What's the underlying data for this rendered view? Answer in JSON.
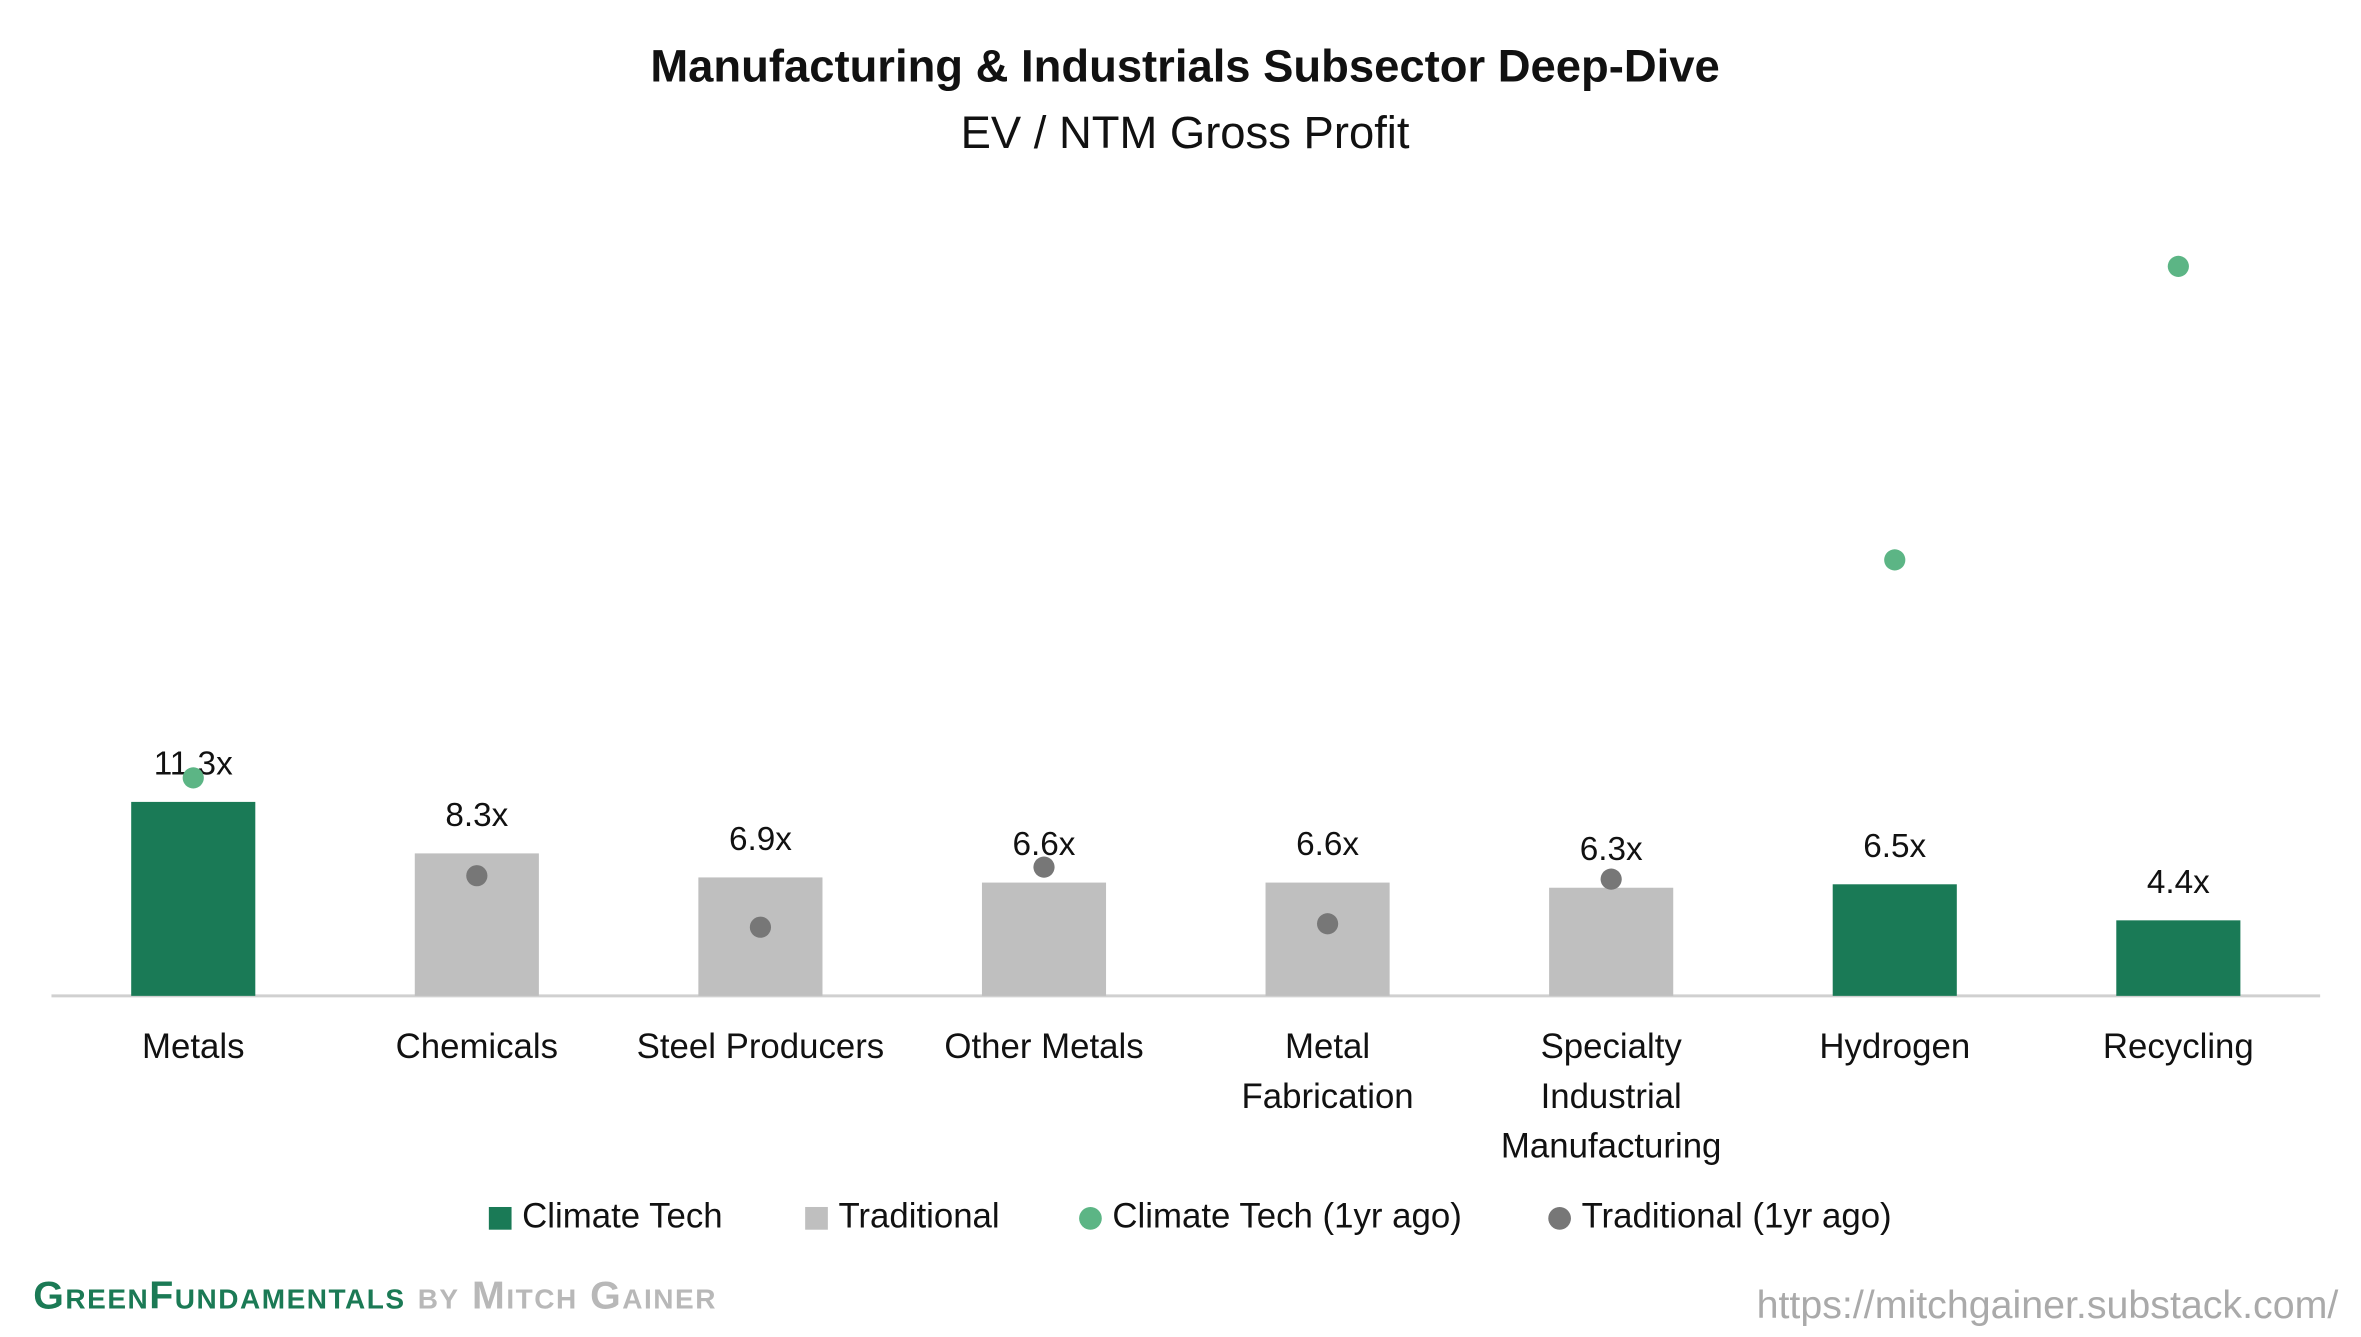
{
  "chart_data": {
    "type": "bar",
    "title": "Manufacturing & Industrials Subsector Deep-Dive",
    "subtitle": "EV / NTM Gross Profit",
    "categories": [
      "Metals",
      "Chemicals",
      "Steel Producers",
      "Other Metals",
      "Metal Fabrication",
      "Specialty Industrial Manufacturing",
      "Hydrogen",
      "Recycling"
    ],
    "series": [
      {
        "name": "Climate Tech",
        "type": "bar",
        "color": "#1a7a56",
        "values": [
          11.3,
          null,
          null,
          null,
          null,
          null,
          6.5,
          4.4
        ],
        "value_labels": [
          "11.3x",
          null,
          null,
          null,
          null,
          null,
          "6.5x",
          "4.4x"
        ]
      },
      {
        "name": "Traditional",
        "type": "bar",
        "color": "#bfbfbf",
        "values": [
          null,
          8.3,
          6.9,
          6.6,
          6.6,
          6.3,
          null,
          null
        ],
        "value_labels": [
          null,
          "8.3x",
          "6.9x",
          "6.6x",
          "6.6x",
          "6.3x",
          null,
          null
        ]
      },
      {
        "name": "Climate Tech (1yr ago)",
        "type": "scatter",
        "color": "#5cb585",
        "values": [
          12.7,
          null,
          null,
          null,
          null,
          null,
          25.4,
          42.5
        ]
      },
      {
        "name": "Traditional (1yr ago)",
        "type": "scatter",
        "color": "#777777",
        "values": [
          null,
          7.0,
          4.0,
          7.5,
          4.2,
          6.8,
          null,
          null
        ]
      }
    ],
    "legend": "bottom"
  },
  "footer": {
    "brand": "GreenFundamentals",
    "byline": "by Mitch Gainer",
    "url": "https://mitchgainer.substack.com/"
  }
}
